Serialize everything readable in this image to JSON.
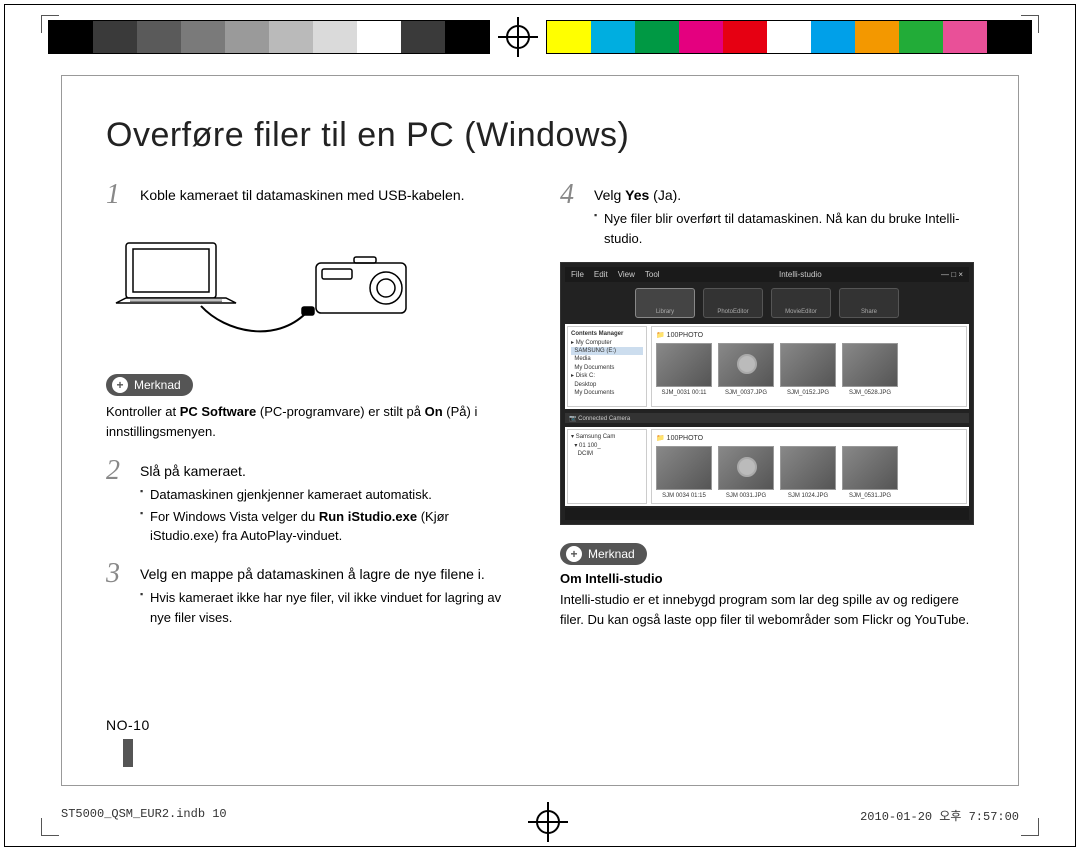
{
  "registration": {
    "colors_left": [
      "#000000",
      "#3a3a3a",
      "#5a5a5a",
      "#7a7a7a",
      "#9a9a9a",
      "#bababa",
      "#dadada",
      "#ffffff",
      "#3a3a3a",
      "#000000"
    ],
    "colors_right": [
      "#ffff00",
      "#00aee0",
      "#009944",
      "#e4007f",
      "#e60012",
      "#ffffff",
      "#00a0e9",
      "#f39800",
      "#22ac38",
      "#e95098",
      "#000000"
    ]
  },
  "title": "Overføre filer til en PC (Windows)",
  "left_column": {
    "step1": {
      "num": "1",
      "text": "Koble kameraet til datamaskinen med USB-kabelen."
    },
    "note": {
      "label": "Merknad",
      "body_parts": [
        "Kontroller at ",
        "PC Software",
        " (PC-programvare) er stilt på ",
        "On",
        " (På) i innstillingsmenyen."
      ]
    },
    "step2": {
      "num": "2",
      "text": "Slå på kameraet.",
      "bullets_parts": [
        [
          "Datamaskinen gjenkjenner kameraet automatisk."
        ],
        [
          "For Windows Vista velger du ",
          "Run iStudio.exe",
          " (Kjør iStudio.exe) fra AutoPlay-vinduet."
        ]
      ]
    },
    "step3": {
      "num": "3",
      "text": "Velg en mappe på datamaskinen å lagre de nye filene i.",
      "bullets": [
        "Hvis kameraet ikke har nye filer, vil ikke vinduet for lagring av nye filer vises."
      ]
    }
  },
  "right_column": {
    "step4": {
      "num": "4",
      "text_parts": [
        "Velg ",
        "Yes",
        " (Ja)."
      ],
      "bullets": [
        "Nye filer blir overført til datamaskinen. Nå kan du bruke Intelli-studio."
      ]
    },
    "screenshot": {
      "menubar": [
        "File",
        "Edit",
        "View",
        "Tool"
      ],
      "app_title": "Intelli-studio",
      "tabs": [
        "Library",
        "PhotoEditor",
        "MovieEditor",
        "Share"
      ],
      "sidebar_top_title": "Contents Manager",
      "sidebar_top_items": [
        "My Computer",
        "SAMSUNG (E:)",
        "Media",
        "My Documents"
      ],
      "sidebar_bottom_items": [
        "Disk C:",
        "Desktop",
        "My Documents"
      ],
      "path_label1": "100PHOTO",
      "connected_label": "Connected Camera",
      "sidebar_cam_items": [
        "Samsung Cam",
        "01 100_",
        "DCIM"
      ],
      "path_label2": "100PHOTO",
      "thumb_caps_top": [
        "SJM_0031   00:11",
        "SJM_0037.JPG",
        "SJM_0152.JPG",
        "SJM_0528.JPG"
      ],
      "thumb_caps_bottom": [
        "SJM 0034   01:15",
        "SJM 0031.JPG",
        "SJM 1024.JPG",
        "SJM_0531.JPG"
      ]
    },
    "note": {
      "label": "Merknad",
      "subtitle": "Om Intelli-studio",
      "body": "Intelli-studio er et innebygd program som lar deg spille av og redigere filer. Du kan også laste opp filer til webområder som Flickr og YouTube."
    }
  },
  "page_number": "NO-10",
  "footer": {
    "file": "ST5000_QSM_EUR2.indb   10",
    "date": "2010-01-20   오후 7:57:00"
  },
  "style": {
    "title_fontsize": 34,
    "body_fontsize": 14,
    "step_num_color": "#888888",
    "note_badge_bg": "#555555",
    "page_mark_color": "#555555"
  }
}
